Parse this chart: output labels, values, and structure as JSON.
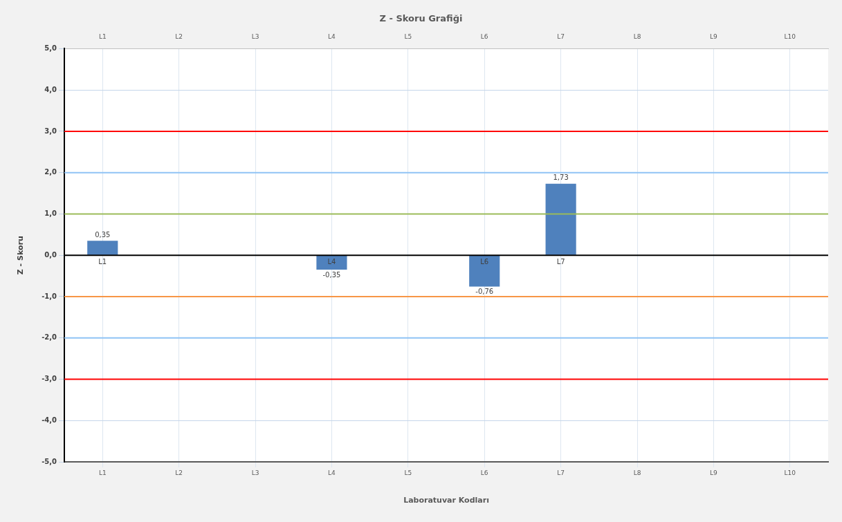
{
  "chart_data": {
    "type": "bar",
    "title": "Z - Skoru Grafiği",
    "xlabel": "Laboratuvar Kodları",
    "ylabel": "Z - Skoru",
    "categories": [
      "L1",
      "L2",
      "L3",
      "L4",
      "L5",
      "L6",
      "L7",
      "L8",
      "L9",
      "L10"
    ],
    "values": [
      0.35,
      null,
      null,
      -0.35,
      null,
      -0.76,
      1.73,
      null,
      null,
      null
    ],
    "value_labels": [
      "0,35",
      null,
      null,
      "-0,35",
      null,
      "-0,76",
      "1,73",
      null,
      null,
      null
    ],
    "color": "#4f81bd",
    "ylim": [
      -5,
      5
    ],
    "yticks": [
      {
        "value": -5,
        "label": "-5,0"
      },
      {
        "value": -4,
        "label": "-4,0"
      },
      {
        "value": -3,
        "label": "-3,0"
      },
      {
        "value": -2,
        "label": "-2,0"
      },
      {
        "value": -1,
        "label": "-1,0"
      },
      {
        "value": 0,
        "label": "0,0"
      },
      {
        "value": 1,
        "label": "1,0"
      },
      {
        "value": 2,
        "label": "2,0"
      },
      {
        "value": 3,
        "label": "3,0"
      },
      {
        "value": 4,
        "label": "4,0"
      },
      {
        "value": 5,
        "label": "5,0"
      }
    ],
    "ref_lines": [
      {
        "axis": "y",
        "value": 3,
        "color": "#ff0000"
      },
      {
        "axis": "y",
        "value": 2,
        "color": "#8fc3f5"
      },
      {
        "axis": "y",
        "value": 1,
        "color": "#9bbb59"
      },
      {
        "axis": "y",
        "value": 0,
        "color": "#000000"
      },
      {
        "axis": "y",
        "value": -1,
        "color": "#f79646"
      },
      {
        "axis": "y",
        "value": -2,
        "color": "#8fc3f5"
      },
      {
        "axis": "y",
        "value": -3,
        "color": "#ff0000"
      }
    ],
    "annotations": [
      {
        "text": "L1",
        "x": "L1",
        "y": 0
      },
      {
        "text": "L4",
        "x": "L4",
        "y": 0
      },
      {
        "text": "L6",
        "x": "L6",
        "y": 0
      },
      {
        "text": "L7",
        "x": "L7",
        "y": 0
      }
    ],
    "grid": true,
    "legend": false
  }
}
